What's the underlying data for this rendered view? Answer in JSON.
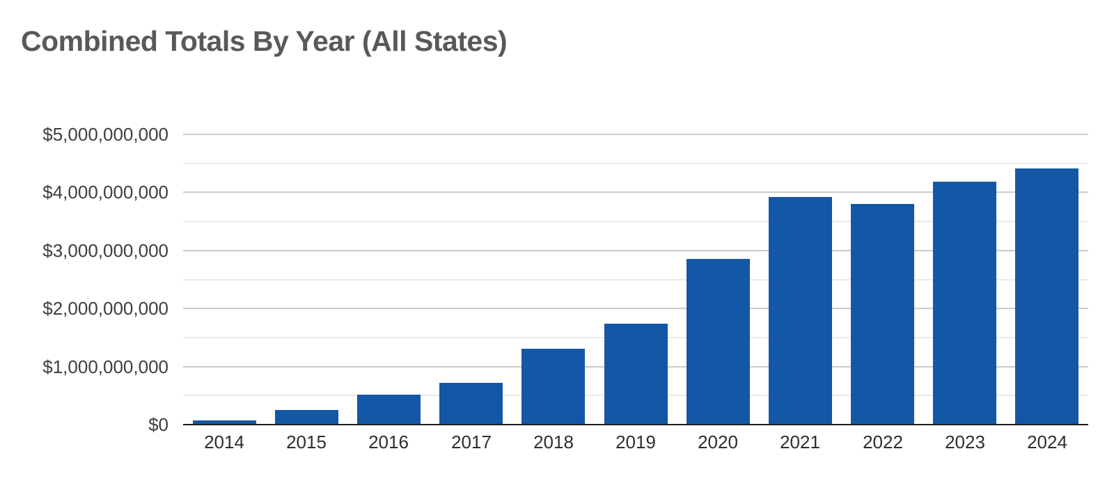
{
  "page": {
    "title": "Combined Totals By Year (All States)"
  },
  "colors": {
    "bar": "#1457a6",
    "title": "#58595b",
    "y_axis_label": "#3e3e3e",
    "x_axis_label": "#2e2e2e",
    "grid_major": "#cbcbcb",
    "grid_minor": "#eaeaea",
    "baseline": "#1c1c1c",
    "background": "#ffffff"
  },
  "chart_data": {
    "type": "bar",
    "title": "Combined Totals By Year (All States)",
    "xlabel": "",
    "ylabel": "",
    "categories": [
      "2014",
      "2015",
      "2016",
      "2017",
      "2018",
      "2019",
      "2020",
      "2021",
      "2022",
      "2023",
      "2024"
    ],
    "values": [
      75000000,
      255000000,
      520000000,
      725000000,
      1310000000,
      1735000000,
      2850000000,
      3915000000,
      3805000000,
      4180000000,
      4410000000
    ],
    "ylim": [
      0,
      5000000000
    ],
    "y_tick_interval": 1000000000,
    "y_minor_interval": 500000000,
    "y_tick_labels": [
      "$0",
      "$1,000,000,000",
      "$2,000,000,000",
      "$3,000,000,000",
      "$4,000,000,000",
      "$5,000,000,000"
    ],
    "grid": true,
    "legend": false
  }
}
